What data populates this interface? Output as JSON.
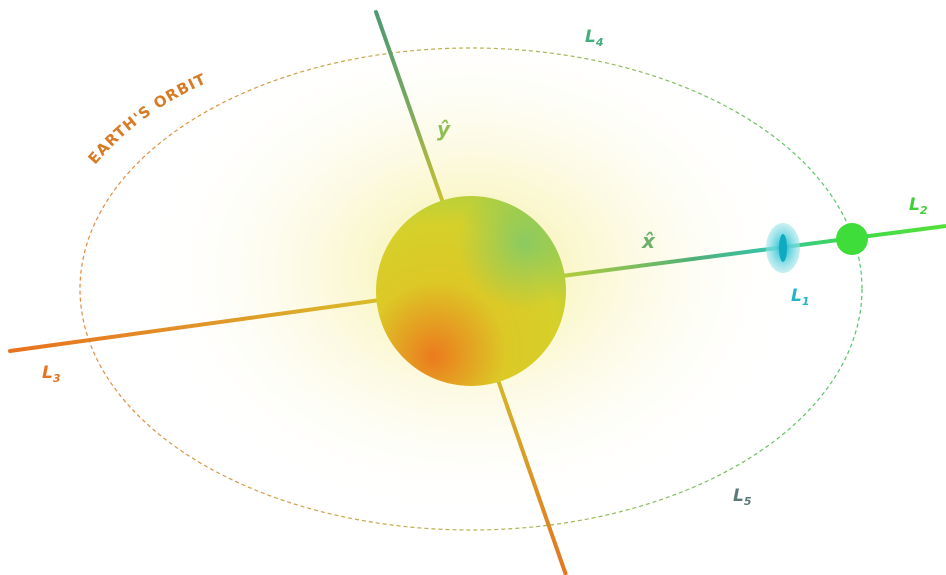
{
  "orbit": {
    "label": "EARTH'S ORBIT"
  },
  "axes": {
    "x_label": "x̂",
    "y_label": "ŷ"
  },
  "lagrange_points": [
    {
      "id": "L1",
      "base": "L",
      "sub": "1"
    },
    {
      "id": "L2",
      "base": "L",
      "sub": "2"
    },
    {
      "id": "L3",
      "base": "L",
      "sub": "3"
    },
    {
      "id": "L4",
      "base": "L",
      "sub": "4"
    },
    {
      "id": "L5",
      "base": "L",
      "sub": "5"
    }
  ],
  "colors": {
    "orange": "#e8721e",
    "gold": "#d9c026",
    "sun_core": "#e5d020",
    "green": "#3fd94a",
    "teal": "#4aa88a",
    "cyan": "#2ec9d6",
    "slate": "#5c7a78",
    "orbit_label": "#d97a25"
  }
}
